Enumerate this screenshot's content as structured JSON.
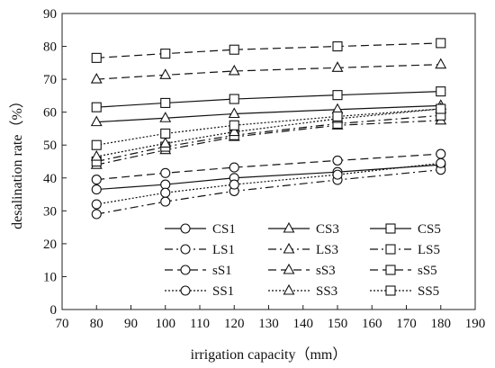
{
  "chart_data": {
    "type": "line",
    "xlabel": "irrigation capacity（mm）",
    "ylabel": "desalination rate（%）",
    "xlim": [
      70,
      190
    ],
    "ylim": [
      0,
      90
    ],
    "x_ticks": [
      70,
      80,
      90,
      100,
      110,
      120,
      130,
      140,
      150,
      160,
      170,
      180,
      190
    ],
    "y_ticks": [
      0,
      10,
      20,
      30,
      40,
      50,
      60,
      70,
      80,
      90
    ],
    "grid": false,
    "legend_position": "bottom-right",
    "x": [
      80,
      100,
      120,
      150,
      180
    ],
    "series": [
      {
        "name": "CS1",
        "marker": "circle",
        "dash": "solid",
        "values": [
          36.5,
          38.0,
          40.0,
          41.8,
          44.0
        ]
      },
      {
        "name": "CS3",
        "marker": "triangle",
        "dash": "solid",
        "values": [
          57.0,
          58.2,
          59.5,
          60.8,
          62.0
        ]
      },
      {
        "name": "CS5",
        "marker": "square",
        "dash": "solid",
        "values": [
          61.5,
          62.8,
          64.0,
          65.2,
          66.3
        ]
      },
      {
        "name": "LS1",
        "marker": "circle",
        "dash": "dashdot",
        "values": [
          29.0,
          32.8,
          36.0,
          39.4,
          42.5
        ]
      },
      {
        "name": "LS3",
        "marker": "triangle",
        "dash": "dashdot",
        "values": [
          44.0,
          48.5,
          52.5,
          56.0,
          57.5
        ]
      },
      {
        "name": "LS5",
        "marker": "square",
        "dash": "dashdot",
        "values": [
          45.0,
          49.5,
          53.0,
          56.5,
          59.0
        ]
      },
      {
        "name": "sS1",
        "marker": "circle",
        "dash": "dashed",
        "values": [
          39.5,
          41.5,
          43.2,
          45.3,
          47.3
        ]
      },
      {
        "name": "sS3",
        "marker": "triangle",
        "dash": "dashed",
        "values": [
          70.0,
          71.3,
          72.5,
          73.5,
          74.5
        ]
      },
      {
        "name": "sS5",
        "marker": "square",
        "dash": "dashed",
        "values": [
          76.5,
          77.8,
          79.0,
          80.0,
          81.0
        ]
      },
      {
        "name": "SS1",
        "marker": "circle",
        "dash": "dotted",
        "values": [
          32.0,
          35.5,
          38.0,
          41.0,
          44.5
        ]
      },
      {
        "name": "SS3",
        "marker": "triangle",
        "dash": "dotted",
        "values": [
          46.5,
          50.5,
          54.0,
          58.0,
          61.0
        ]
      },
      {
        "name": "SS5",
        "marker": "square",
        "dash": "dotted",
        "values": [
          50.0,
          53.5,
          56.0,
          58.7,
          61.0
        ]
      }
    ]
  }
}
